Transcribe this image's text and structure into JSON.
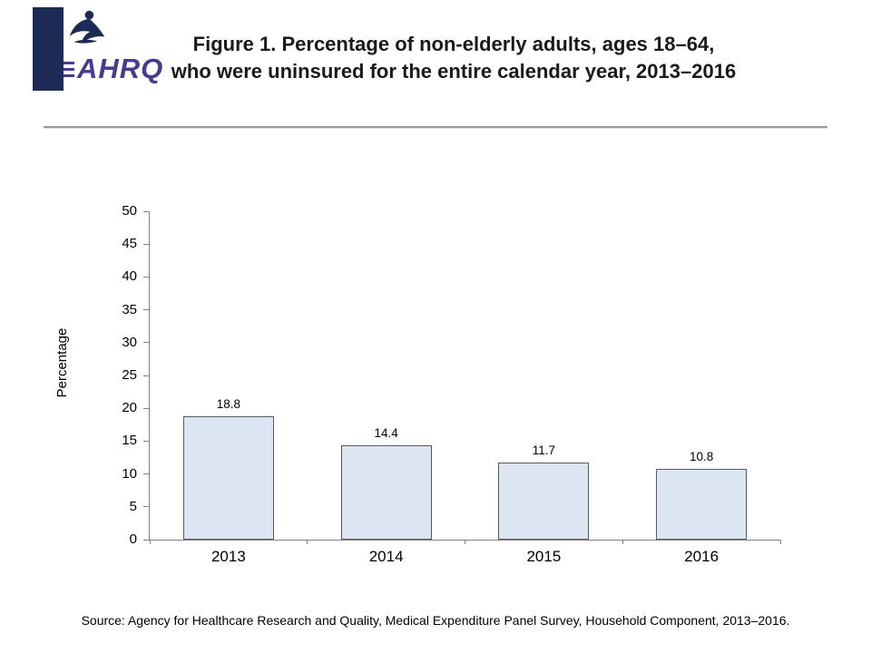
{
  "header": {
    "logo_text": "AHRQ",
    "title_line1": "Figure 1. Percentage of non-elderly adults, ages 18–64,",
    "title_line2": "who were uninsured for the entire calendar year, 2013–2016"
  },
  "chart_data": {
    "type": "bar",
    "title": "Figure 1. Percentage of non-elderly adults, ages 18–64, who were uninsured for the entire calendar year, 2013–2016",
    "categories": [
      "2013",
      "2014",
      "2015",
      "2016"
    ],
    "values": [
      18.8,
      14.4,
      11.7,
      10.8
    ],
    "data_labels": [
      "18.8",
      "14.4",
      "11.7",
      "10.8"
    ],
    "xlabel": "",
    "ylabel": "Percentage",
    "ylim": [
      0,
      50
    ],
    "ytick_step": 5,
    "grid": false,
    "legend": "none",
    "bar_fill": "#dce6f2",
    "bar_border": "#595959"
  },
  "footer": {
    "source": "Source: Agency for Healthcare Research and Quality, Medical Expenditure Panel Survey, Household Component, 2013–2016."
  }
}
